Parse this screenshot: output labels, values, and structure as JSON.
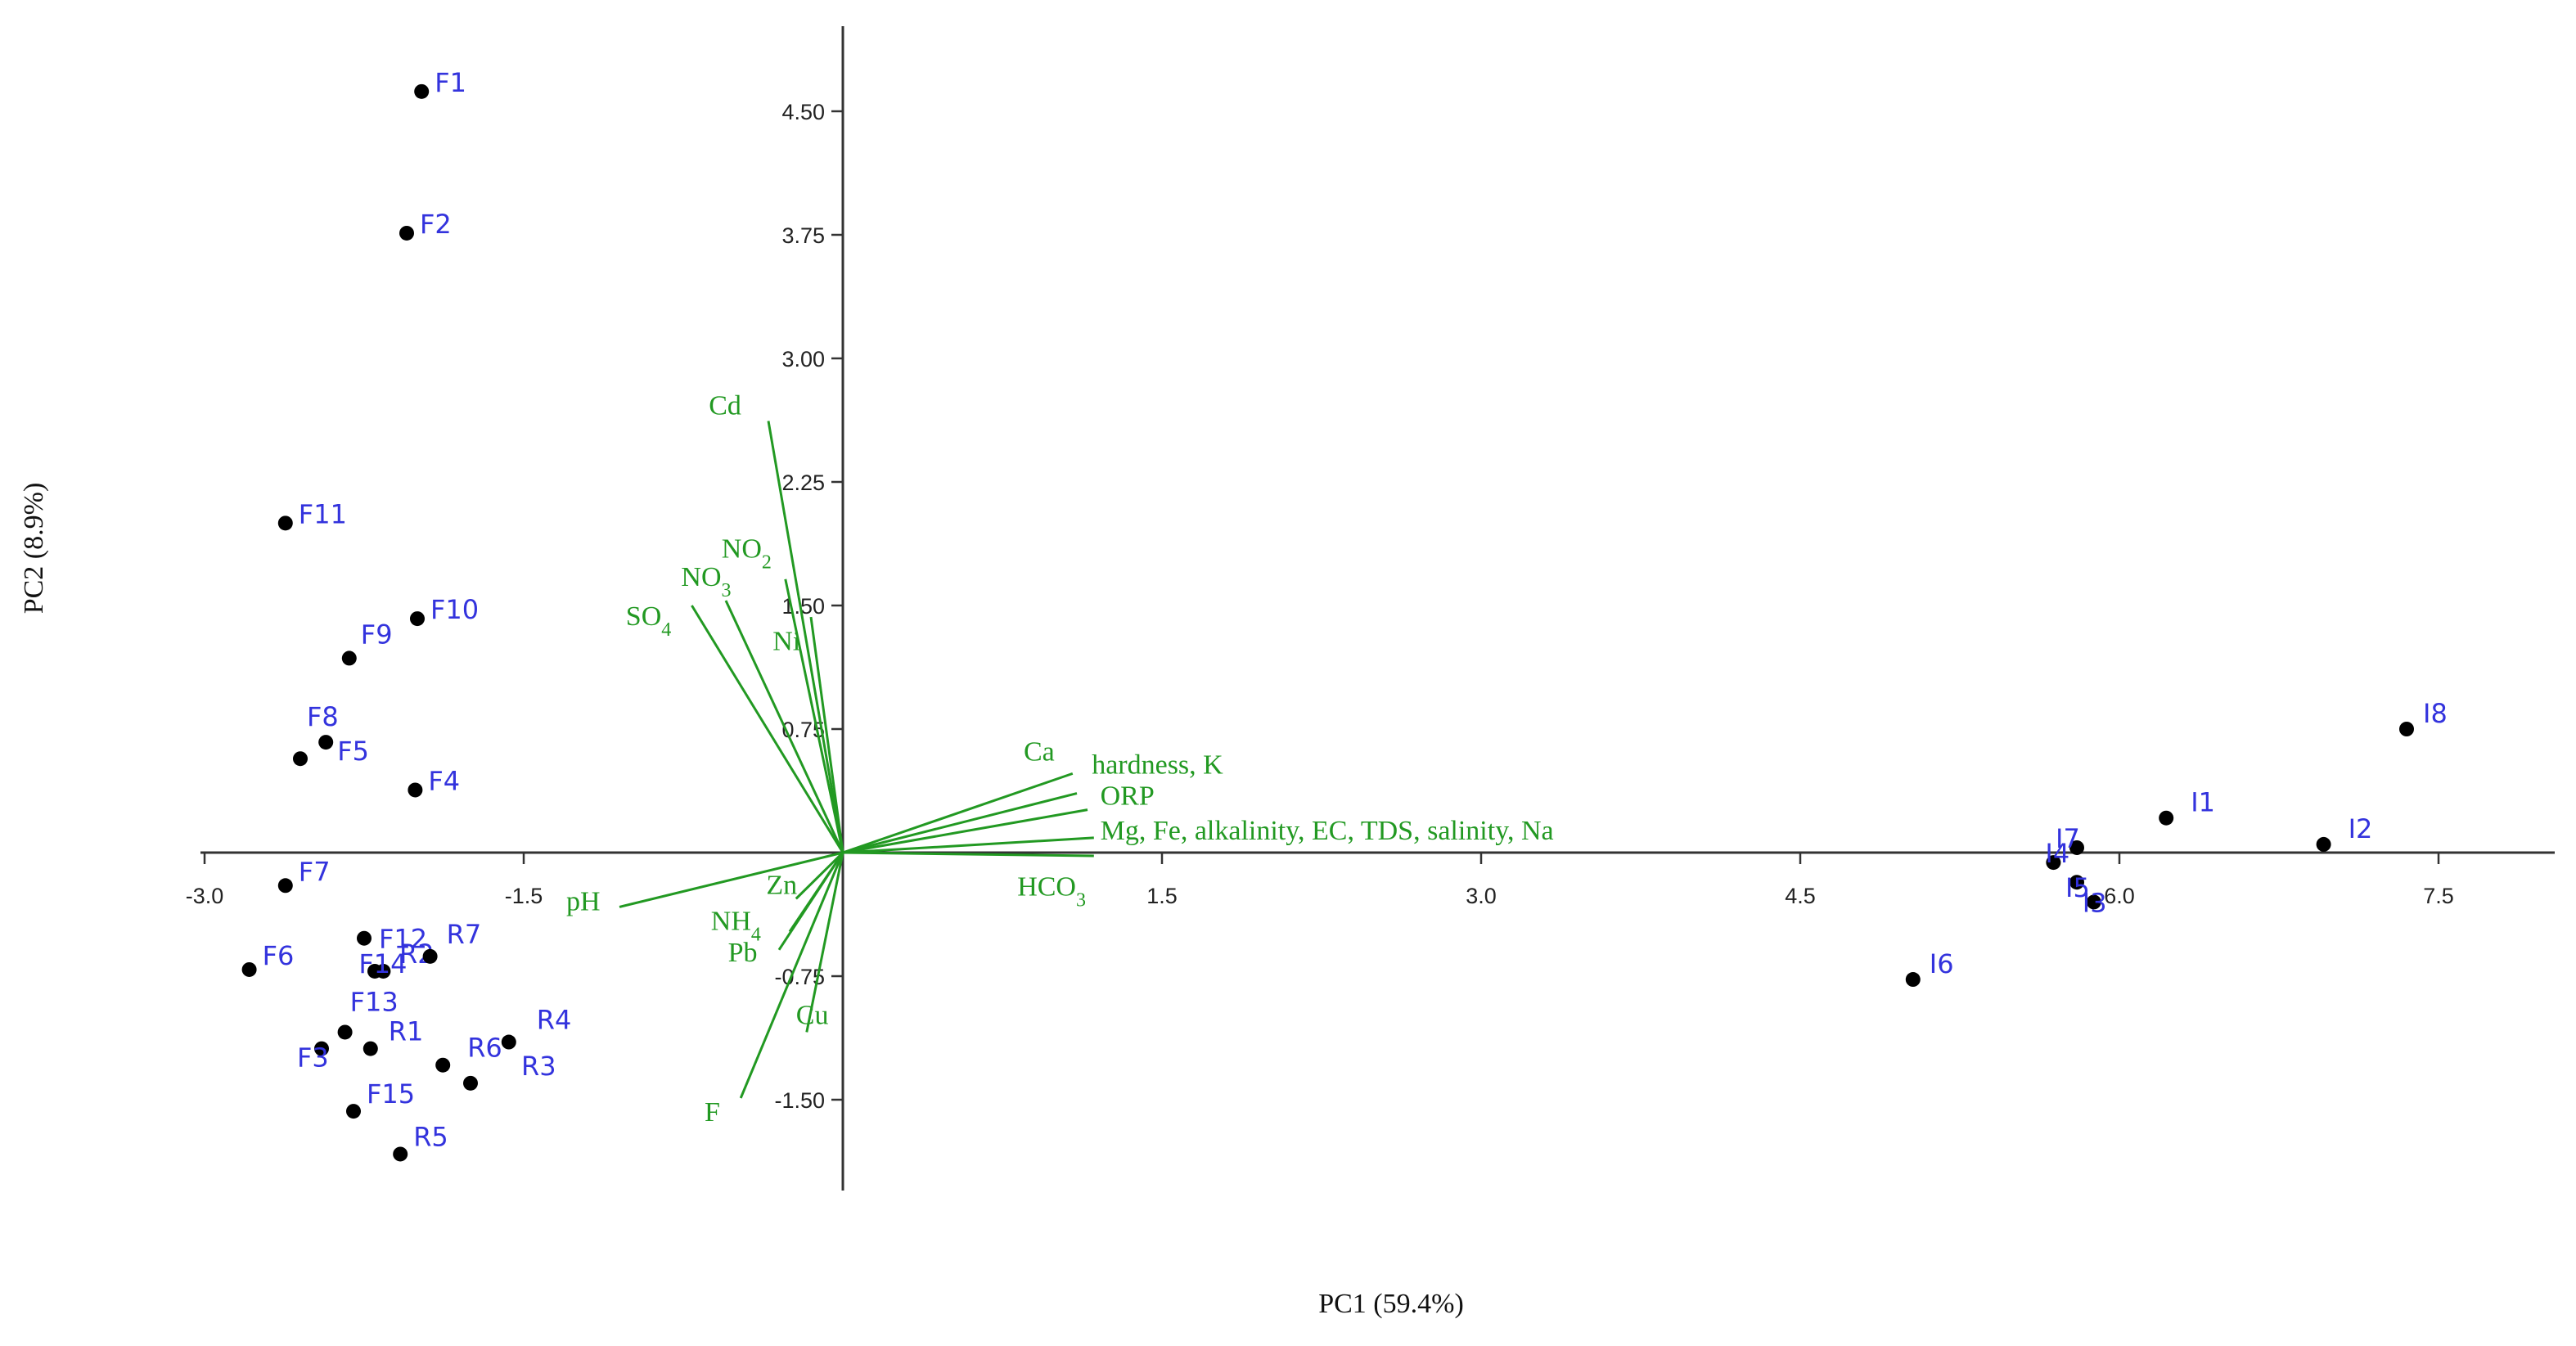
{
  "chart_data": {
    "type": "scatter",
    "subtype": "pca-biplot",
    "title": "",
    "xlabel": "PC1 (59.4%)",
    "ylabel": "PC2 (8.9%)",
    "xlim": [
      -3.0,
      8.0
    ],
    "ylim": [
      -2.0,
      5.0
    ],
    "x_ticks": [
      -3.0,
      -1.5,
      1.5,
      3.0,
      4.5,
      6.0,
      7.5
    ],
    "x_tick_labels": [
      "-3.0",
      "-1.5",
      "1.5",
      "3.0",
      "4.5",
      "6.0",
      "7.5"
    ],
    "y_ticks": [
      4.5,
      3.75,
      3.0,
      2.25,
      1.5,
      0.75,
      -0.75,
      -1.5
    ],
    "y_tick_labels": [
      "4.50",
      "3.75",
      "3.00",
      "2.25",
      "1.50",
      "0.75",
      "-0.75",
      "-1.50"
    ],
    "grid": false,
    "colors": {
      "points": "#000000",
      "point_labels": "#3333dd",
      "loadings": "#229922",
      "axes": "#333333"
    },
    "scores": [
      {
        "label": "F1",
        "x": -1.98,
        "y": 4.62
      },
      {
        "label": "F2",
        "x": -2.05,
        "y": 3.76
      },
      {
        "label": "F11",
        "x": -2.62,
        "y": 2.0
      },
      {
        "label": "F10",
        "x": -2.0,
        "y": 1.42
      },
      {
        "label": "F9",
        "x": -2.32,
        "y": 1.18
      },
      {
        "label": "F5",
        "x": -2.43,
        "y": 0.67
      },
      {
        "label": "F8",
        "x": -2.55,
        "y": 0.57
      },
      {
        "label": "F4",
        "x": -2.01,
        "y": 0.38
      },
      {
        "label": "F7",
        "x": -2.62,
        "y": -0.2
      },
      {
        "label": "F12",
        "x": -2.25,
        "y": -0.52
      },
      {
        "label": "R2",
        "x": -2.2,
        "y": -0.72
      },
      {
        "label": "F14",
        "x": -2.16,
        "y": -0.72
      },
      {
        "label": "R7",
        "x": -1.94,
        "y": -0.63
      },
      {
        "label": "F6",
        "x": -2.79,
        "y": -0.71
      },
      {
        "label": "F13",
        "x": -2.34,
        "y": -1.09
      },
      {
        "label": "R1",
        "x": -2.22,
        "y": -1.19
      },
      {
        "label": "F3",
        "x": -2.45,
        "y": -1.19
      },
      {
        "label": "R6",
        "x": -1.88,
        "y": -1.29
      },
      {
        "label": "R4",
        "x": -1.57,
        "y": -1.15
      },
      {
        "label": "R3",
        "x": -1.75,
        "y": -1.4
      },
      {
        "label": "F15",
        "x": -2.3,
        "y": -1.57
      },
      {
        "label": "R5",
        "x": -2.08,
        "y": -1.83
      },
      {
        "label": "I8",
        "x": 7.35,
        "y": 0.75
      },
      {
        "label": "I1",
        "x": 6.22,
        "y": 0.21
      },
      {
        "label": "I7",
        "x": 5.8,
        "y": 0.03
      },
      {
        "label": "I2",
        "x": 6.96,
        "y": 0.05
      },
      {
        "label": "I4",
        "x": 5.69,
        "y": -0.06
      },
      {
        "label": "I5",
        "x": 5.8,
        "y": -0.18
      },
      {
        "label": "I3",
        "x": 5.88,
        "y": -0.3
      },
      {
        "label": "I6",
        "x": 5.03,
        "y": -0.77
      }
    ],
    "loadings": [
      {
        "label": "Cd",
        "x": -0.35,
        "y": 2.62
      },
      {
        "label": "NO2",
        "x": -0.27,
        "y": 1.66
      },
      {
        "label": "NO3",
        "x": -0.55,
        "y": 1.53
      },
      {
        "label": "SO4",
        "x": -0.71,
        "y": 1.5
      },
      {
        "label": "Ni",
        "x": -0.15,
        "y": 1.43
      },
      {
        "label": "Ca",
        "x": 1.08,
        "y": 0.48
      },
      {
        "label": "hardness, K",
        "x": 1.1,
        "y": 0.36
      },
      {
        "label": "ORP",
        "x": 1.15,
        "y": 0.26
      },
      {
        "label": "Mg, Fe, alkalinity, EC, TDS, salinity, Na",
        "x": 1.18,
        "y": 0.09
      },
      {
        "label": "HCO3",
        "x": 1.18,
        "y": -0.02
      },
      {
        "label": "pH",
        "x": -1.05,
        "y": -0.33
      },
      {
        "label": "Zn",
        "x": -0.22,
        "y": -0.28
      },
      {
        "label": "NH4",
        "x": -0.25,
        "y": -0.48
      },
      {
        "label": "Pb",
        "x": -0.3,
        "y": -0.59
      },
      {
        "label": "Cu",
        "x": -0.17,
        "y": -1.09
      },
      {
        "label": "F",
        "x": -0.48,
        "y": -1.49
      }
    ]
  }
}
